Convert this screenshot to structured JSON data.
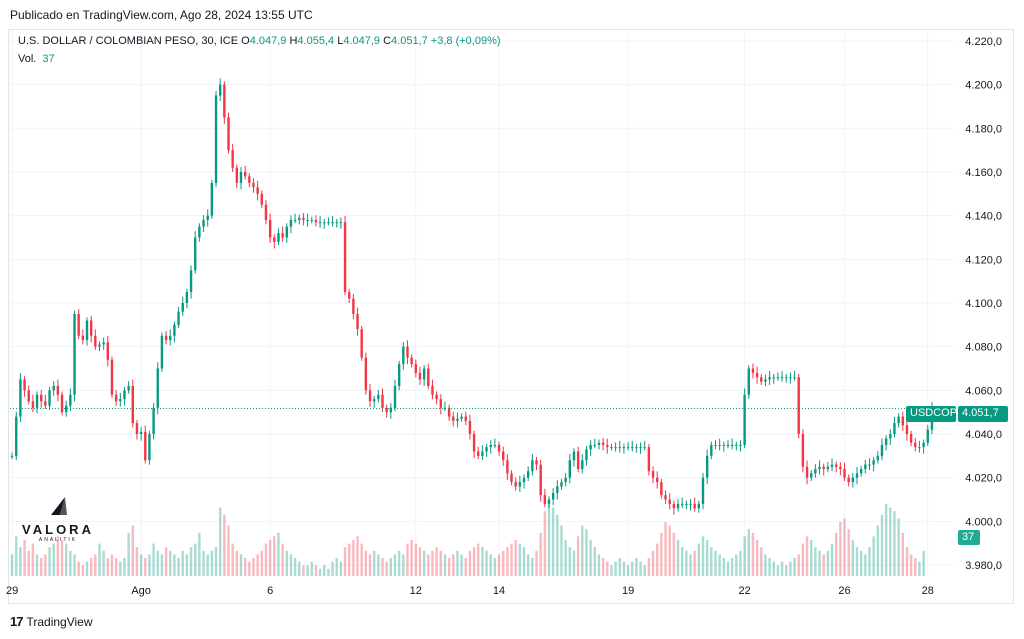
{
  "published": "Publicado en TradingView.com, Ago 28, 2024 13:55 UTC",
  "legend": {
    "title": "U.S. DOLLAR / COLOMBIAN PESO, 30, ICE",
    "open_label": "O",
    "open": "4.047,9",
    "high_label": "H",
    "high": "4.055,4",
    "low_label": "L",
    "low": "4.047,9",
    "close_label": "C",
    "close": "4.051,7",
    "change": "+3,8 (+0,09%)",
    "vol_label": "Vol.",
    "vol": "37"
  },
  "price_tag": {
    "symbol": "USDCOP",
    "price": "4.051,7"
  },
  "volume_tag": "37",
  "watermark": {
    "brand": "VALORA",
    "sub": "ANALITIK"
  },
  "footer": {
    "logo": "17",
    "brand": "TradingView"
  },
  "colors": {
    "up": "#089981",
    "down": "#f23645",
    "grid": "#f0f3fa",
    "text": "#131722"
  },
  "chart_data": {
    "type": "candlestick",
    "title": "U.S. DOLLAR / COLOMBIAN PESO, 30, ICE",
    "ylim": [
      3975,
      4225
    ],
    "y_ticks": [
      3980,
      4000,
      4020,
      4040,
      4060,
      4080,
      4100,
      4120,
      4140,
      4160,
      4180,
      4200,
      4220
    ],
    "y_tick_labels": [
      "3.980,0",
      "4.000,0",
      "4.020,0",
      "4.040,0",
      "4.060,0",
      "4.080,0",
      "4.100,0",
      "4.120,0",
      "4.140,0",
      "4.160,0",
      "4.180,0",
      "4.200,0",
      "4.220,0"
    ],
    "x_labels": [
      "29",
      "Ago",
      "6",
      "12",
      "14",
      "19",
      "22",
      "26",
      "28"
    ],
    "x_label_bars": [
      0,
      31,
      62,
      97,
      117,
      148,
      176,
      200,
      220
    ],
    "last_price": 4051.7,
    "price_path": [
      4030,
      4048,
      4065,
      4060,
      4055,
      4052,
      4058,
      4055,
      4053,
      4060,
      4062,
      4058,
      4050,
      4053,
      4058,
      4095,
      4085,
      4083,
      4092,
      4085,
      4080,
      4081,
      4082,
      4074,
      4058,
      4055,
      4056,
      4060,
      4062,
      4045,
      4040,
      4041,
      4028,
      4040,
      4052,
      4070,
      4085,
      4083,
      4085,
      4090,
      4096,
      4100,
      4105,
      4115,
      4130,
      4135,
      4138,
      4140,
      4155,
      4195,
      4200,
      4185,
      4170,
      4162,
      4155,
      4160,
      4158,
      4155,
      4153,
      4150,
      4145,
      4138,
      4130,
      4128,
      4132,
      4130,
      4135,
      4138,
      4138,
      4139,
      4138,
      4138,
      4138,
      4137,
      4137,
      4137,
      4137,
      4137,
      4137,
      4137,
      4105,
      4102,
      4095,
      4088,
      4075,
      4060,
      4055,
      4056,
      4058,
      4052,
      4050,
      4052,
      4062,
      4072,
      4080,
      4075,
      4072,
      4068,
      4065,
      4070,
      4062,
      4058,
      4056,
      4052,
      4052,
      4048,
      4046,
      4047,
      4048,
      4046,
      4040,
      4032,
      4030,
      4032,
      4034,
      4035,
      4035,
      4032,
      4028,
      4022,
      4018,
      4016,
      4018,
      4020,
      4023,
      4028,
      4026,
      4012,
      4008,
      4010,
      4013,
      4016,
      4018,
      4020,
      4028,
      4032,
      4024,
      4028,
      4033,
      4035,
      4035,
      4036,
      4035,
      4034,
      4034,
      4034,
      4034,
      4034,
      4034,
      4034,
      4034,
      4034,
      4034,
      4023,
      4020,
      4018,
      4012,
      4010,
      4008,
      4006,
      4008,
      4008,
      4008,
      4008,
      4006,
      4008,
      4020,
      4030,
      4035,
      4035,
      4035,
      4035,
      4035,
      4035,
      4035,
      4035,
      4058,
      4070,
      4068,
      4066,
      4064,
      4065,
      4066,
      4066,
      4066,
      4066,
      4066,
      4066,
      4066,
      4040,
      4025,
      4020,
      4022,
      4024,
      4025,
      4024,
      4025,
      4026,
      4025,
      4024,
      4020,
      4018,
      4020,
      4022,
      4024,
      4026,
      4026,
      4028,
      4030,
      4035,
      4038,
      4040,
      4045,
      4048,
      4044,
      4040,
      4036,
      4034,
      4034,
      4036,
      4042,
      4051.7
    ],
    "volume_profile": [
      0.3,
      0.55,
      0.4,
      0.5,
      0.35,
      0.45,
      0.3,
      0.25,
      0.3,
      0.4,
      0.45,
      0.55,
      0.5,
      0.45,
      0.35,
      0.3,
      0.2,
      0.15,
      0.2,
      0.25,
      0.3,
      0.45,
      0.35,
      0.25,
      0.3,
      0.25,
      0.2,
      0.25,
      0.6,
      0.7,
      0.4,
      0.3,
      0.25,
      0.3,
      0.45,
      0.35,
      0.3,
      0.4,
      0.35,
      0.3,
      0.25,
      0.35,
      0.3,
      0.4,
      0.45,
      0.6,
      0.35,
      0.3,
      0.35,
      0.4,
      0.95,
      0.85,
      0.7,
      0.45,
      0.35,
      0.3,
      0.25,
      0.2,
      0.25,
      0.3,
      0.35,
      0.45,
      0.5,
      0.55,
      0.6,
      0.45,
      0.35,
      0.3,
      0.25,
      0.2,
      0.15,
      0.15,
      0.2,
      0.15,
      0.1,
      0.15,
      0.1,
      0.2,
      0.25,
      0.2,
      0.4,
      0.45,
      0.5,
      0.55,
      0.45,
      0.35,
      0.3,
      0.35,
      0.3,
      0.25,
      0.2,
      0.25,
      0.3,
      0.35,
      0.3,
      0.45,
      0.5,
      0.45,
      0.4,
      0.35,
      0.3,
      0.35,
      0.4,
      0.35,
      0.3,
      0.25,
      0.3,
      0.35,
      0.3,
      0.25,
      0.35,
      0.4,
      0.45,
      0.4,
      0.35,
      0.3,
      0.25,
      0.3,
      0.35,
      0.4,
      0.45,
      0.5,
      0.45,
      0.4,
      0.3,
      0.25,
      0.35,
      0.6,
      0.9,
      1.0,
      0.95,
      0.85,
      0.7,
      0.5,
      0.4,
      0.35,
      0.55,
      0.7,
      0.65,
      0.5,
      0.4,
      0.3,
      0.25,
      0.2,
      0.15,
      0.2,
      0.25,
      0.2,
      0.15,
      0.2,
      0.25,
      0.2,
      0.15,
      0.25,
      0.35,
      0.45,
      0.6,
      0.75,
      0.7,
      0.6,
      0.5,
      0.4,
      0.35,
      0.3,
      0.35,
      0.45,
      0.55,
      0.5,
      0.4,
      0.35,
      0.3,
      0.25,
      0.2,
      0.25,
      0.3,
      0.35,
      0.55,
      0.65,
      0.6,
      0.5,
      0.4,
      0.3,
      0.25,
      0.2,
      0.15,
      0.2,
      0.15,
      0.2,
      0.25,
      0.3,
      0.45,
      0.55,
      0.5,
      0.4,
      0.35,
      0.3,
      0.35,
      0.45,
      0.6,
      0.75,
      0.8,
      0.65,
      0.5,
      0.4,
      0.35,
      0.3,
      0.4,
      0.55,
      0.7,
      0.85,
      1.0,
      0.95,
      0.9,
      0.8,
      0.6,
      0.4,
      0.3,
      0.25,
      0.2,
      0.35
    ]
  }
}
